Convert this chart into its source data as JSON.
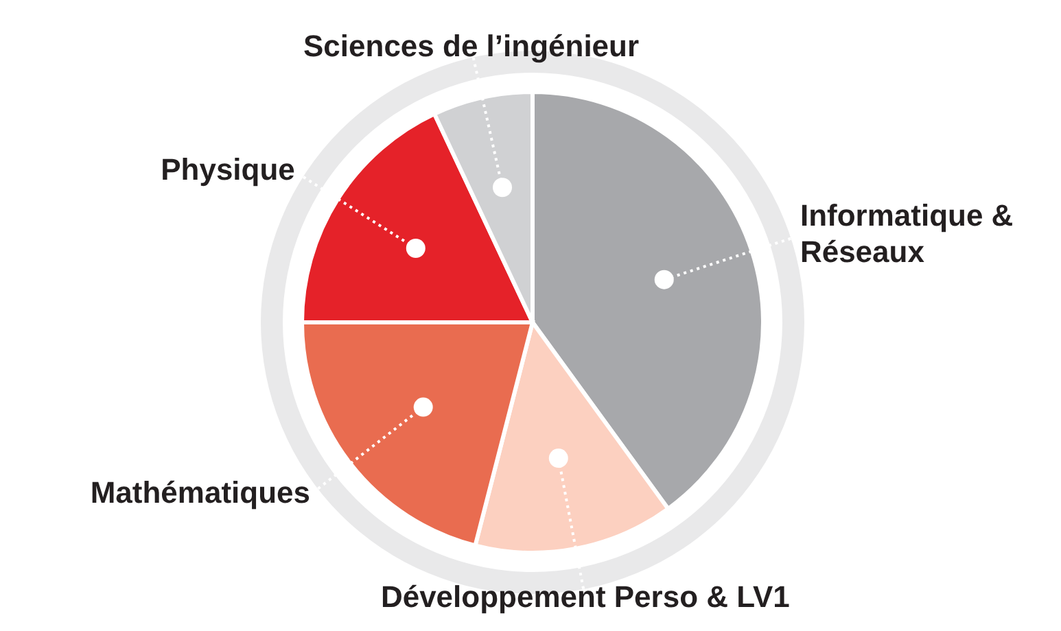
{
  "chart_data": {
    "type": "pie",
    "categories": [
      "Informatique & Réseaux",
      "Développement Perso & LV1",
      "Mathématiques",
      "Physique",
      "Sciences de l’ingénieur"
    ],
    "values": [
      40,
      14,
      21,
      18,
      7
    ],
    "colors": [
      "#a7a8ab",
      "#fcd0c0",
      "#e96c50",
      "#e52229",
      "#d0d1d3"
    ]
  }
}
